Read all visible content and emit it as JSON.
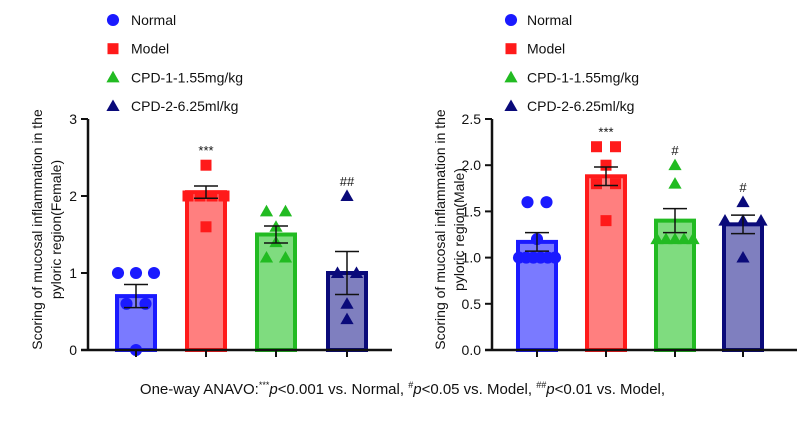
{
  "legend": [
    {
      "label": "Normal",
      "color": "#1a1aff",
      "marker": "circle"
    },
    {
      "label": "Model",
      "color": "#ff1a1a",
      "marker": "square"
    },
    {
      "label": "CPD-1-1.55mg/kg",
      "color": "#22bb22",
      "marker": "triangle"
    },
    {
      "label": "CPD-2-6.25ml/kg",
      "color": "#0a0a7a",
      "marker": "triangle"
    }
  ],
  "chart_data": [
    {
      "type": "bar",
      "ylabel_line1": "Scoring of mucosal inflammation in the",
      "ylabel_line2": "pyloric region(Female)",
      "ylim": [
        0,
        3
      ],
      "yticks": [
        "0",
        "1",
        "2",
        "3"
      ],
      "categories": [
        "Normal",
        "Model",
        "CPD-1-1.55mg/kg",
        "CPD-2-6.25ml/kg"
      ],
      "means": [
        0.7,
        2.05,
        1.5,
        1.0
      ],
      "sem": [
        0.15,
        0.08,
        0.11,
        0.28
      ],
      "points": [
        [
          1,
          1,
          1,
          0.6,
          0.6,
          0
        ],
        [
          2.4,
          2,
          2,
          2,
          2,
          1.6
        ],
        [
          1.8,
          1.8,
          1.6,
          1.4,
          1.2,
          1.2
        ],
        [
          2,
          1,
          1,
          0.6,
          0.4
        ]
      ],
      "annotations": [
        "",
        "***",
        "",
        "##"
      ]
    },
    {
      "type": "bar",
      "ylabel_line1": "Scoring of mucosal inflammation in the",
      "ylabel_line2": "pyloric region(Male)",
      "ylim": [
        0,
        2.5
      ],
      "yticks": [
        "0.0",
        "0.5",
        "1.0",
        "1.5",
        "2.0",
        "2.5"
      ],
      "categories": [
        "Normal",
        "Model",
        "CPD-1-1.55mg/kg",
        "CPD-2-6.25ml/kg"
      ],
      "means": [
        1.17,
        1.88,
        1.4,
        1.36
      ],
      "sem": [
        0.1,
        0.1,
        0.13,
        0.1
      ],
      "points": [
        [
          1.6,
          1.6,
          1.2,
          1,
          1,
          1,
          1,
          1,
          1
        ],
        [
          2.2,
          2.2,
          2,
          1.8,
          1.8,
          1.4
        ],
        [
          2,
          1.8,
          1.2,
          1.2,
          1.2,
          1.2,
          1.2
        ],
        [
          1.6,
          1.4,
          1.4,
          1.4,
          1.0
        ]
      ],
      "annotations": [
        "",
        "***",
        "#",
        "#"
      ]
    }
  ],
  "footnote": {
    "prefix": "One-way ANAVO:",
    "sup1": "***",
    "p1": "p",
    "text1": "<0.001 vs. Normal, ",
    "sup2": "#",
    "p2": "p",
    "text2": "<0.05 vs. Model, ",
    "sup3": "##",
    "p3": "p",
    "text3": "<0.01 vs. Model,"
  },
  "colors": {
    "fills": [
      "#7a7aff",
      "#ff7f7f",
      "#7fdc7f",
      "#7f7fbf"
    ],
    "strokes": [
      "#1a1aff",
      "#ff1a1a",
      "#22bb22",
      "#0a0a7a"
    ]
  }
}
